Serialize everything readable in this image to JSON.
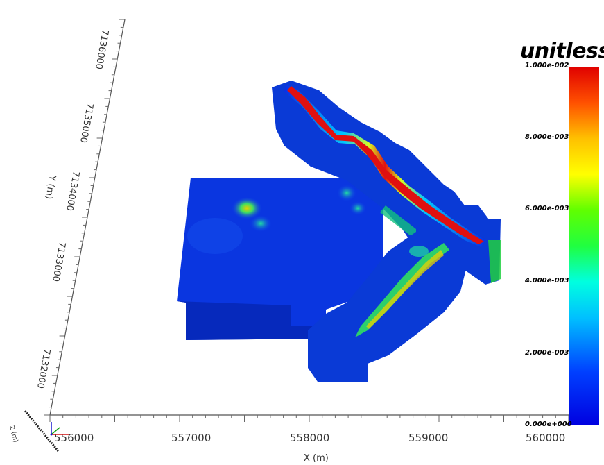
{
  "axes": {
    "x_title": "X (m)",
    "y_title": "Y (m)",
    "z_title": "Z (m)",
    "x_ticks": [
      "556000",
      "557000",
      "558000",
      "559000",
      "560000"
    ],
    "y_ticks": [
      "7132000",
      "7133000",
      "7134000",
      "7135000",
      "7136000"
    ]
  },
  "legend": {
    "title": "unitless",
    "labels": [
      "1.000e-002",
      "8.000e-003",
      "6.000e-003",
      "4.000e-003",
      "2.000e-003",
      "0.000e+000"
    ],
    "colormap": "jet"
  },
  "colors": {
    "low": "#0a2fe6",
    "high": "#e01010",
    "background": "#ffffff"
  }
}
